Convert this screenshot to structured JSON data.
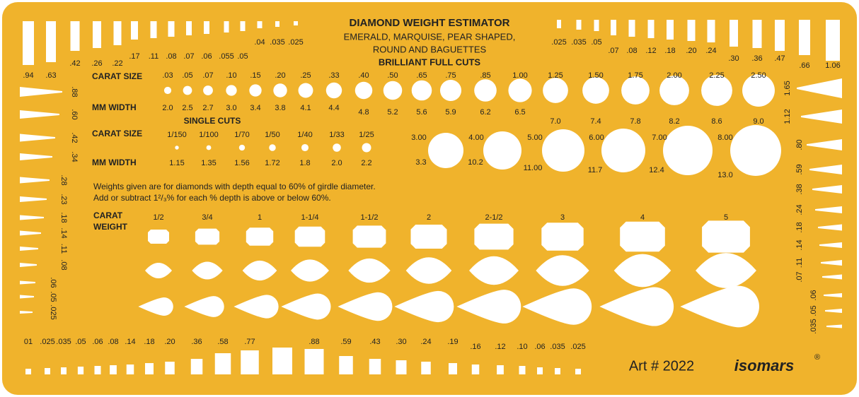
{
  "title": "DIAMOND WEIGHT ESTIMATOR",
  "subtitle": [
    "EMERALD, MARQUISE, PEAR SHAPED,",
    "ROUND AND BAGUETTES",
    "BRILLIANT FULL CUTS"
  ],
  "brilliant": {
    "carat_label": "CARAT SIZE",
    "mm_label": "MM WIDTH",
    "carats": [
      ".03",
      ".05",
      ".07",
      ".10",
      ".15",
      ".20",
      ".25",
      ".33",
      ".40",
      ".50",
      ".65",
      ".75",
      ".85",
      "1.00",
      "1.25",
      "1.50",
      "1.75",
      "2.00",
      "2.25",
      "2.50"
    ],
    "mm": [
      "2.0",
      "2.5",
      "2.7",
      "3.0",
      "3.4",
      "3.8",
      "4.1",
      "4.4",
      "4.8",
      "5.2",
      "5.6",
      "5.9",
      "6.2",
      "6.5",
      "7.0",
      "7.4",
      "7.8",
      "8.2",
      "8.6",
      "9.0"
    ]
  },
  "single": {
    "title": "SINGLE CUTS",
    "carat_label": "CARAT SIZE",
    "mm_label": "MM WIDTH",
    "carats": [
      "1/150",
      "1/100",
      "1/70",
      "1/50",
      "1/40",
      "1/33",
      "1/25"
    ],
    "mm": [
      "1.15",
      "1.35",
      "1.56",
      "1.72",
      "1.8",
      "2.0",
      "2.2"
    ]
  },
  "large": {
    "carats": [
      "3.00",
      "4.00",
      "5.00",
      "6.00",
      "7.00",
      "8.00"
    ],
    "mm": [
      "3.3",
      "10.2",
      "11.00",
      "11.7",
      "12.4",
      "13.0"
    ]
  },
  "note": [
    "Weights given are for diamonds with depth equal to 60% of girdle diameter.",
    "Add or subtract 1²/₃% for each % depth is above or below 60%."
  ],
  "fancy": {
    "label": [
      "CARAT",
      "WEIGHT"
    ],
    "weights": [
      "1/2",
      "3/4",
      "1",
      "1-1/4",
      "1-1/2",
      "2",
      "2-1/2",
      "3",
      "4",
      "5"
    ]
  },
  "baguettes_top_left": [
    ".94",
    ".63",
    ".42",
    ".26",
    ".22",
    ".17",
    ".11",
    ".08",
    ".07",
    ".06",
    ".055",
    ".05",
    ".04",
    ".035",
    ".025"
  ],
  "baguettes_top_right": [
    ".025",
    ".035",
    ".05",
    ".07",
    ".08",
    ".12",
    ".18",
    ".20",
    ".24",
    ".30",
    ".36",
    ".47",
    ".66",
    "1.06"
  ],
  "wedges_left": [
    ".88",
    ".60",
    ".42",
    ".34",
    ".28",
    ".23",
    ".18",
    ".14",
    ".11",
    ".08",
    ".06",
    ".05",
    ".025"
  ],
  "wedges_right": [
    "1.65",
    "1.12",
    ".80",
    ".59",
    ".38",
    ".24",
    ".18",
    ".14",
    ".11",
    ".07",
    ".06",
    ".05",
    ".035"
  ],
  "bottom": [
    "01",
    ".025",
    ".035",
    ".05",
    ".06",
    ".08",
    ".14",
    ".18",
    ".20",
    ".36",
    ".58",
    ".77",
    ".88",
    ".59",
    ".43",
    ".30",
    ".24",
    ".19",
    ".16",
    ".12",
    ".10",
    ".06",
    ".035",
    ".025"
  ],
  "footer": {
    "art": "Art # 2022",
    "brand": "isomars",
    "reg": "®"
  }
}
